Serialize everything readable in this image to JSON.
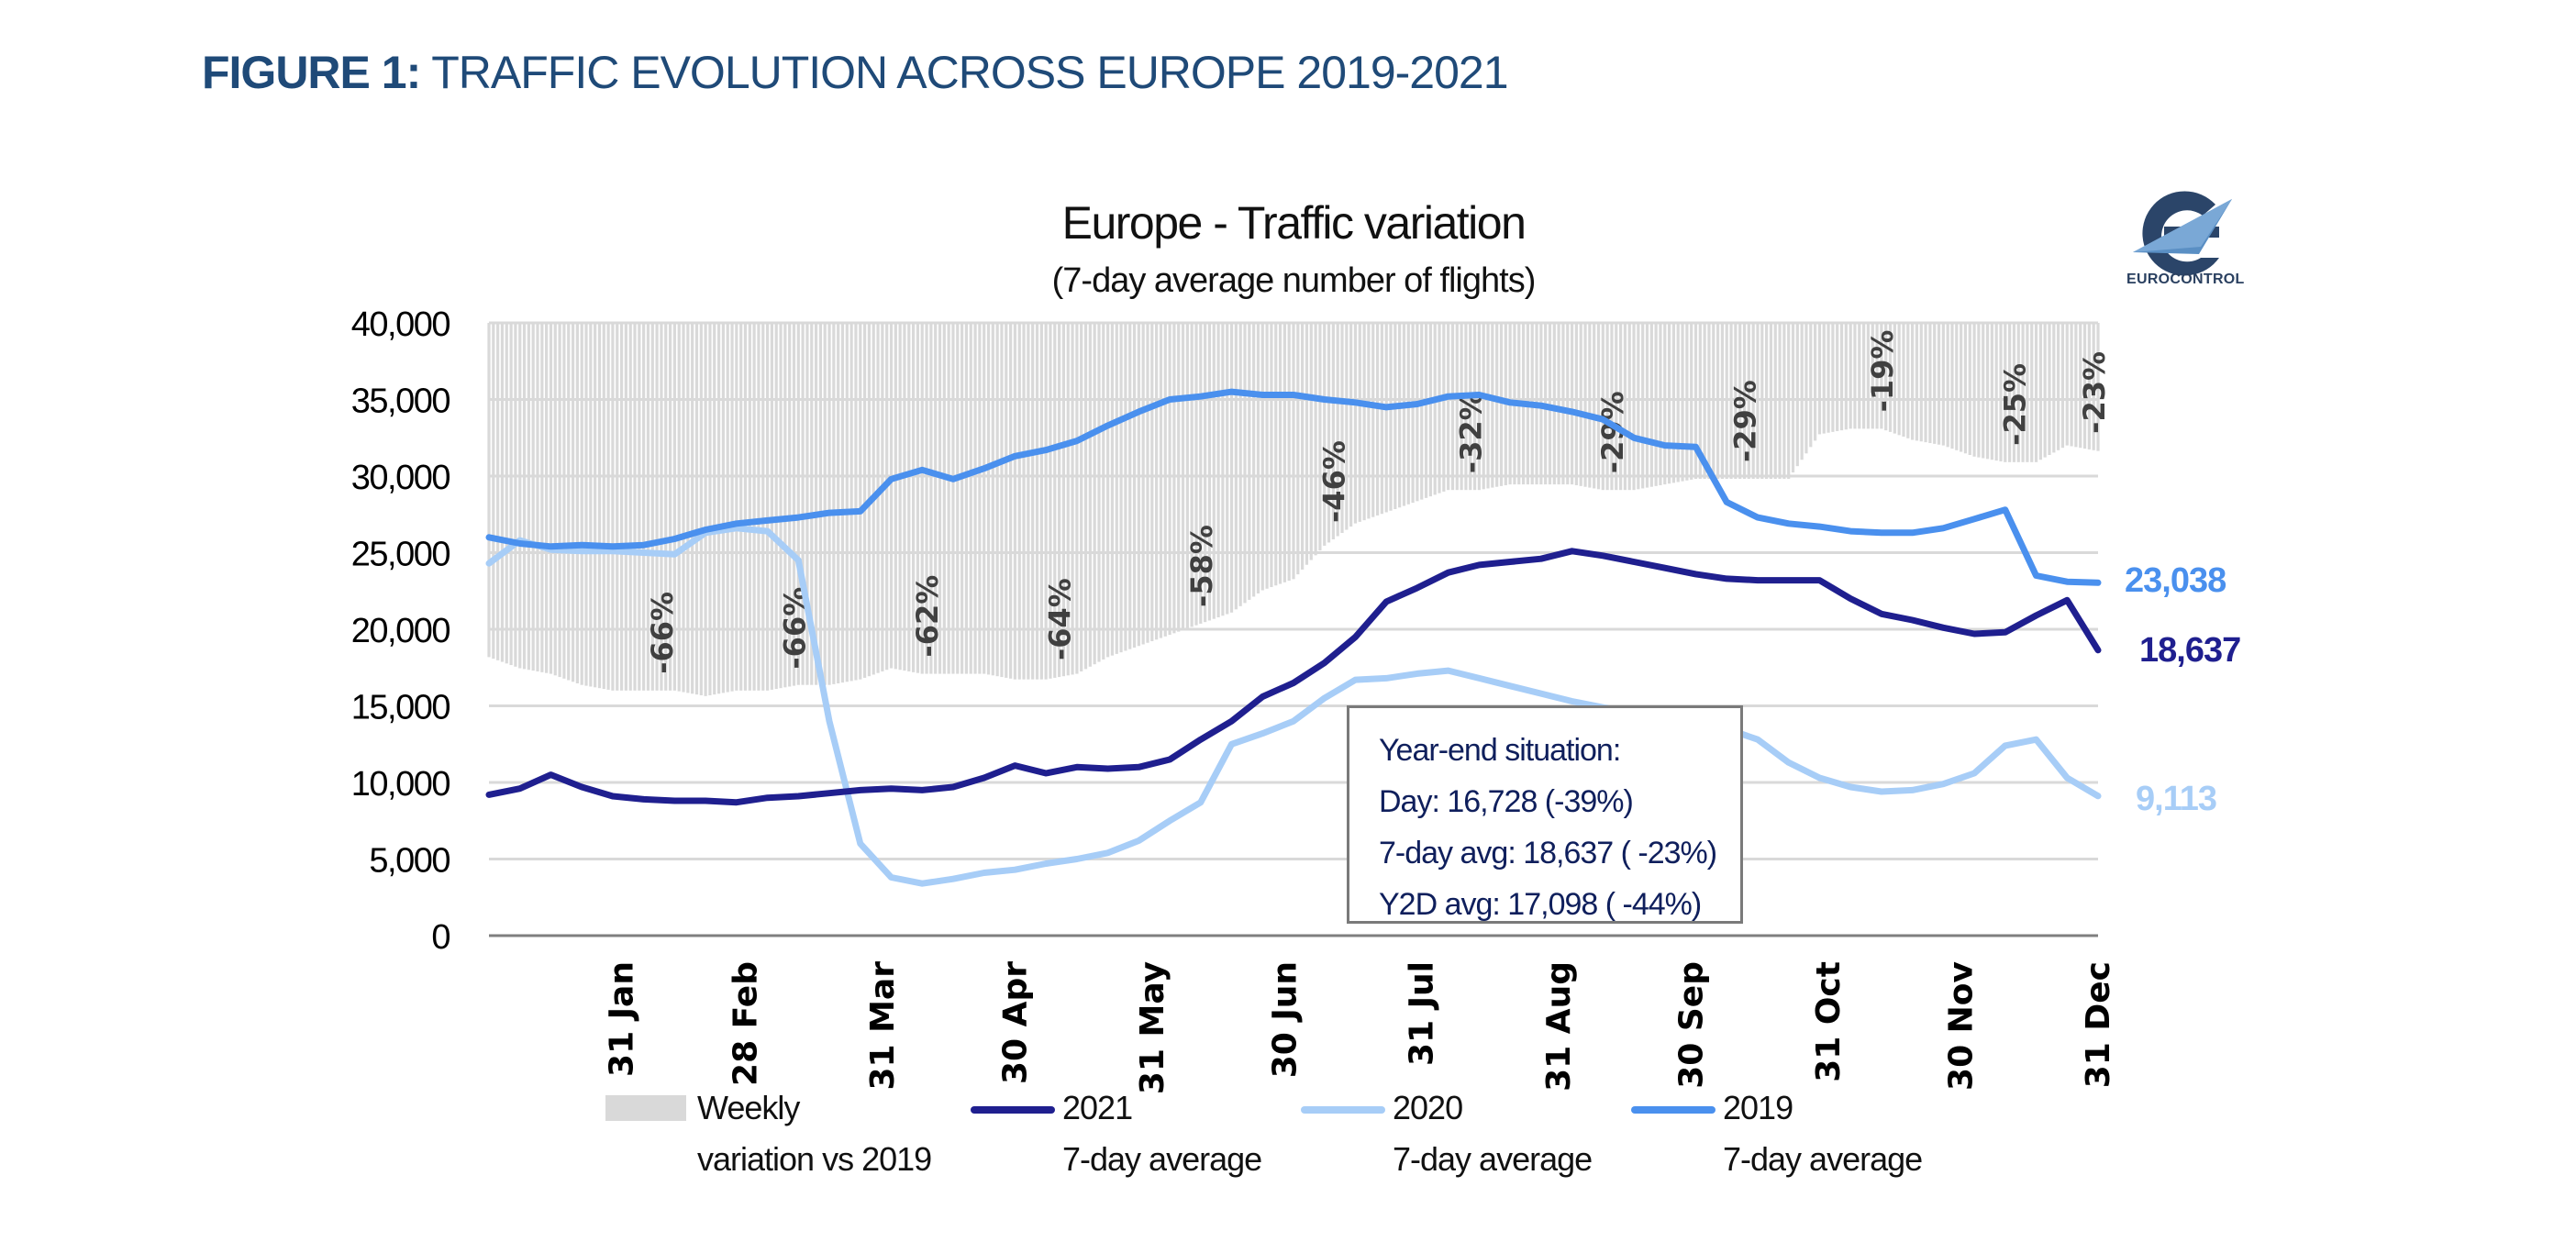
{
  "figure": {
    "label": "FIGURE 1:",
    "title": "TRAFFIC EVOLUTION ACROSS EUROPE 2019-2021"
  },
  "logo": {
    "icon": "eurocontrol-logo-icon",
    "text": "EUROCONTROL"
  },
  "colors": {
    "s2021": "#1f1f8f",
    "s2020": "#a7cdf7",
    "s2019": "#4a90ee",
    "variation": "#d9d9d9",
    "title_blue": "#1f4a78",
    "gridline": "#d9d9d9",
    "axis": "#7f7f7f"
  },
  "infobox": {
    "title": "Year-end situation:",
    "day": "Day: 16,728 (-39%)",
    "avg7": "7-day avg: 18,637 ( -23%)",
    "y2d": "Y2D avg: 17,098 ( -44%)"
  },
  "chart_data": {
    "type": "line",
    "title": "Europe - Traffic variation",
    "subtitle": "(7-day average number of flights)",
    "xlabel": "",
    "ylabel": "",
    "ylim": [
      0,
      40000
    ],
    "yticks": [
      0,
      5000,
      10000,
      15000,
      20000,
      25000,
      30000,
      35000,
      40000
    ],
    "ytick_labels": [
      "0",
      "5,000",
      "10,000",
      "15,000",
      "20,000",
      "25,000",
      "30,000",
      "35,000",
      "40,000"
    ],
    "xlim_day_of_year": [
      1,
      365
    ],
    "xtick_days": [
      31,
      59,
      90,
      120,
      151,
      181,
      212,
      243,
      273,
      304,
      334,
      365
    ],
    "xtick_labels": [
      "31 Jan",
      "28 Feb",
      "31 Mar",
      "30 Apr",
      "31 May",
      "30 Jun",
      "31 Jul",
      "31 Aug",
      "30 Sep",
      "31 Oct",
      "30 Nov",
      "31 Dec"
    ],
    "grid": true,
    "legend_position": "bottom",
    "secondary_axis": {
      "name": "Weekly variation vs 2019",
      "range_percent": [
        0,
        -110
      ],
      "direction": "downward-from-top"
    },
    "x_days": [
      1,
      8,
      15,
      22,
      29,
      36,
      43,
      50,
      57,
      64,
      71,
      78,
      85,
      92,
      99,
      106,
      113,
      120,
      127,
      134,
      141,
      148,
      155,
      162,
      169,
      176,
      183,
      190,
      197,
      204,
      211,
      218,
      225,
      232,
      239,
      246,
      253,
      260,
      267,
      274,
      281,
      288,
      295,
      302,
      309,
      316,
      323,
      330,
      337,
      344,
      351,
      358,
      365
    ],
    "series": [
      {
        "name": "2021 7-day average",
        "color_key": "s2021",
        "values": [
          9200,
          9600,
          10500,
          9700,
          9100,
          8900,
          8800,
          8800,
          8700,
          9000,
          9100,
          9300,
          9500,
          9600,
          9500,
          9700,
          10300,
          11100,
          10600,
          11000,
          10900,
          11000,
          11500,
          12800,
          14000,
          15600,
          16500,
          17800,
          19500,
          21800,
          22700,
          23700,
          24200,
          24400,
          24600,
          25100,
          24800,
          24400,
          24000,
          23600,
          23300,
          23200,
          23200,
          23200,
          22000,
          21000,
          20600,
          20100,
          19700,
          19800,
          20900,
          21900,
          18637
        ]
      },
      {
        "name": "2020 7-day average",
        "color_key": "s2020",
        "values": [
          24300,
          25800,
          25200,
          25100,
          25100,
          25000,
          24900,
          26300,
          26600,
          26400,
          24500,
          14000,
          6000,
          3800,
          3400,
          3700,
          4100,
          4300,
          4700,
          5000,
          5400,
          6200,
          7500,
          8700,
          12500,
          13200,
          14000,
          15500,
          16700,
          16800,
          17100,
          17300,
          16800,
          16300,
          15800,
          15300,
          14900,
          14500,
          14100,
          13900,
          13500,
          12800,
          11300,
          10300,
          9700,
          9400,
          9500,
          9900,
          10600,
          12400,
          12800,
          10300,
          9113
        ]
      },
      {
        "name": "2019 7-day average",
        "color_key": "s2019",
        "values": [
          26000,
          25600,
          25400,
          25500,
          25400,
          25500,
          25900,
          26500,
          26900,
          27100,
          27300,
          27600,
          27700,
          29800,
          30400,
          29800,
          30500,
          31300,
          31700,
          32300,
          33300,
          34200,
          35000,
          35200,
          35500,
          35300,
          35300,
          35000,
          34800,
          34500,
          34700,
          35200,
          35300,
          34800,
          34600,
          34200,
          33700,
          32500,
          32000,
          31900,
          28300,
          27300,
          26900,
          26700,
          26400,
          26300,
          26300,
          26600,
          27200,
          27800,
          23500,
          23100,
          23038
        ]
      },
      {
        "name": "Weekly variation vs 2019",
        "color_key": "variation",
        "unit": "percent",
        "values": [
          -60,
          -62,
          -63,
          -65,
          -66,
          -66,
          -66,
          -67,
          -66,
          -66,
          -65,
          -65,
          -64,
          -62,
          -63,
          -63,
          -63,
          -64,
          -64,
          -63,
          -60,
          -58,
          -56,
          -54,
          -52,
          -48,
          -46,
          -40,
          -36,
          -34,
          -32,
          -30,
          -30,
          -29,
          -29,
          -29,
          -30,
          -30,
          -29,
          -28,
          -28,
          -28,
          -28,
          -20,
          -19,
          -19,
          -21,
          -22,
          -24,
          -25,
          -25,
          -22,
          -23
        ]
      }
    ],
    "variation_annotations": [
      {
        "day": 40,
        "label": "-66%"
      },
      {
        "day": 70,
        "label": "-66%"
      },
      {
        "day": 100,
        "label": "-62%"
      },
      {
        "day": 130,
        "label": "-64%"
      },
      {
        "day": 162,
        "label": "-58%"
      },
      {
        "day": 192,
        "label": "-46%"
      },
      {
        "day": 223,
        "label": "-32%"
      },
      {
        "day": 255,
        "label": "-29%"
      },
      {
        "day": 285,
        "label": "-29%"
      },
      {
        "day": 316,
        "label": "-19%"
      },
      {
        "day": 346,
        "label": "-25%"
      },
      {
        "day": 364,
        "label": "-23%"
      }
    ],
    "end_labels": [
      {
        "series": "2019 7-day average",
        "label": "23,038",
        "value": 23038
      },
      {
        "series": "2021 7-day average",
        "label": "18,637",
        "value": 18637
      },
      {
        "series": "2020 7-day average",
        "label": "9,113",
        "value": 9113
      }
    ],
    "legend": [
      {
        "line1": "Weekly",
        "line2": "variation vs 2019",
        "kind": "box",
        "color_key": "variation"
      },
      {
        "line1": "2021",
        "line2": "7-day average",
        "kind": "line",
        "color_key": "s2021"
      },
      {
        "line1": "2020",
        "line2": "7-day average",
        "kind": "line",
        "color_key": "s2020"
      },
      {
        "line1": "2019",
        "line2": "7-day average",
        "kind": "line",
        "color_key": "s2019"
      }
    ]
  }
}
